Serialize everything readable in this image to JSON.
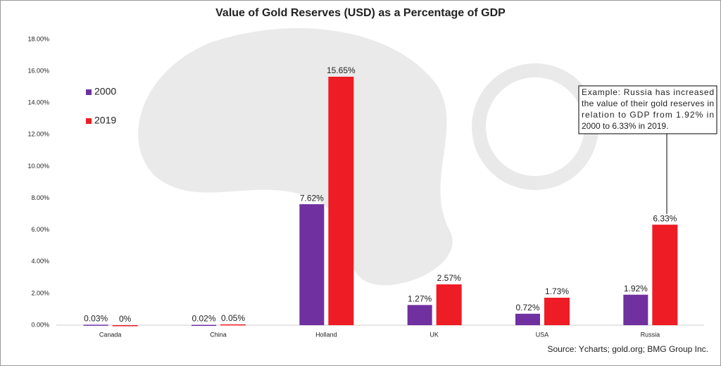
{
  "chart_data": {
    "type": "bar",
    "title": "Value of Gold Reserves (USD) as a Percentage of GDP",
    "categories": [
      "Canada",
      "China",
      "Holland",
      "UK",
      "USA",
      "Russia"
    ],
    "series": [
      {
        "name": "2000",
        "color": "#7030a0",
        "values": [
          0.03,
          0.02,
          7.62,
          1.27,
          0.72,
          1.92
        ],
        "value_labels": [
          "0.03%",
          "0.02%",
          "7.62%",
          "1.27%",
          "0.72%",
          "1.92%"
        ]
      },
      {
        "name": "2019",
        "color": "#ee1c24",
        "values": [
          0,
          0.05,
          15.65,
          2.57,
          1.73,
          6.33
        ],
        "value_labels": [
          "0%",
          "0.05%",
          "15.65%",
          "2.57%",
          "1.73%",
          "6.33%"
        ]
      }
    ],
    "ylim": [
      0,
      18
    ],
    "yticks": [
      {
        "value": 0,
        "label": "0.00%"
      },
      {
        "value": 2,
        "label": "2.00%"
      },
      {
        "value": 4,
        "label": "4.00%"
      },
      {
        "value": 6,
        "label": "6.00%"
      },
      {
        "value": 8,
        "label": "8.00%"
      },
      {
        "value": 10,
        "label": "10.00%"
      },
      {
        "value": 12,
        "label": "12.00%"
      },
      {
        "value": 14,
        "label": "14.00%"
      },
      {
        "value": 16,
        "label": "16.00%"
      },
      {
        "value": 18,
        "label": "18.00%"
      }
    ],
    "grid": false,
    "legend": "upper-left",
    "annotation": [
      "Example: Russia has increased",
      "the value of their gold reserves in",
      "relation to GDP from 1.92% in",
      "2000 to 6.33% in 2019."
    ],
    "source": "Source: Ycharts; gold.org; BMG Group Inc."
  }
}
